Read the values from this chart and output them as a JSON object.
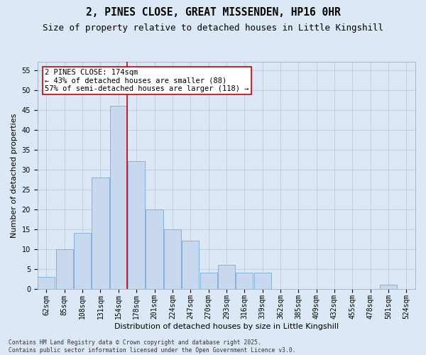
{
  "title": "2, PINES CLOSE, GREAT MISSENDEN, HP16 0HR",
  "subtitle": "Size of property relative to detached houses in Little Kingshill",
  "xlabel": "Distribution of detached houses by size in Little Kingshill",
  "ylabel": "Number of detached properties",
  "bins": [
    "62sqm",
    "85sqm",
    "108sqm",
    "131sqm",
    "154sqm",
    "178sqm",
    "201sqm",
    "224sqm",
    "247sqm",
    "270sqm",
    "293sqm",
    "316sqm",
    "339sqm",
    "362sqm",
    "385sqm",
    "409sqm",
    "432sqm",
    "455sqm",
    "478sqm",
    "501sqm",
    "524sqm"
  ],
  "values": [
    3,
    10,
    14,
    28,
    46,
    32,
    20,
    15,
    12,
    4,
    6,
    4,
    4,
    0,
    0,
    0,
    0,
    0,
    0,
    1,
    0
  ],
  "bar_color": "#c8d8ee",
  "bar_edge_color": "#7baad4",
  "grid_color": "#b8cce4",
  "bg_color": "#dce8f5",
  "vline_x_index": 4.5,
  "vline_color": "#cc0000",
  "annotation_text": "2 PINES CLOSE: 174sqm\n← 43% of detached houses are smaller (88)\n57% of semi-detached houses are larger (118) →",
  "annotation_box_color": "#ffffff",
  "annotation_box_edge": "#cc0000",
  "footer": "Contains HM Land Registry data © Crown copyright and database right 2025.\nContains public sector information licensed under the Open Government Licence v3.0.",
  "ylim": [
    0,
    57
  ],
  "yticks": [
    0,
    5,
    10,
    15,
    20,
    25,
    30,
    35,
    40,
    45,
    50,
    55
  ],
  "title_fontsize": 10.5,
  "subtitle_fontsize": 9,
  "label_fontsize": 8,
  "tick_fontsize": 7,
  "annot_fontsize": 7.5,
  "footer_fontsize": 5.8
}
